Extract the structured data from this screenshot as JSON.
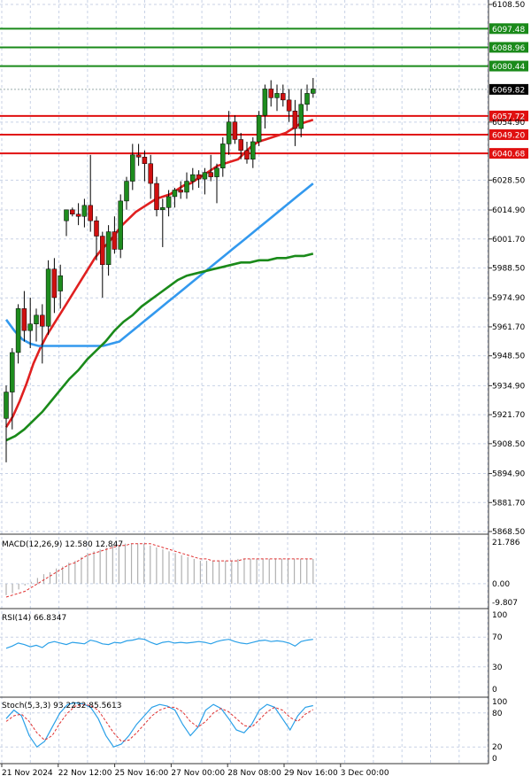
{
  "chart_data": {
    "type": "candlestick",
    "price_axis": {
      "ylim": [
        5868.5,
        6108.5
      ],
      "tick_labels": [
        "6108.50",
        "6054.90",
        "6028.50",
        "6014.90",
        "6001.70",
        "5988.50",
        "5974.90",
        "5961.70",
        "5948.50",
        "5934.90",
        "5921.70",
        "5908.50",
        "5894.90",
        "5881.70",
        "5868.50"
      ],
      "tick_values": [
        6108.5,
        6054.9,
        6028.5,
        6014.9,
        6001.7,
        5988.5,
        5974.9,
        5961.7,
        5948.5,
        5934.9,
        5921.7,
        5908.5,
        5894.9,
        5881.7,
        5868.5
      ]
    },
    "x_axis": {
      "tick_labels": [
        "21 Nov 2024",
        "22 Nov 12:00",
        "25 Nov 16:00",
        "27 Nov 00:00",
        "28 Nov 08:00",
        "29 Nov 16:00",
        "3 Dec 00:00"
      ],
      "tick_index": [
        0,
        10,
        20,
        30,
        40,
        50,
        60
      ]
    },
    "levels": [
      {
        "label": "6097.48",
        "value": 6097.48,
        "color": "#1a8a1a"
      },
      {
        "label": "6088.96",
        "value": 6088.96,
        "color": "#1a8a1a"
      },
      {
        "label": "6080.44",
        "value": 6080.44,
        "color": "#1a8a1a"
      },
      {
        "label": "6057.72",
        "value": 6057.72,
        "color": "#e01010"
      },
      {
        "label": "6049.20",
        "value": 6049.2,
        "color": "#e01010"
      },
      {
        "label": "6040.68",
        "value": 6040.68,
        "color": "#e01010"
      }
    ],
    "current_price": {
      "label": "6069.82",
      "value": 6069.82
    },
    "candles": [
      [
        5920,
        5935,
        5900,
        5932
      ],
      [
        5932,
        5952,
        5915,
        5950
      ],
      [
        5950,
        5972,
        5945,
        5970
      ],
      [
        5970,
        5978,
        5955,
        5960
      ],
      [
        5960,
        5975,
        5952,
        5963
      ],
      [
        5963,
        5970,
        5955,
        5967
      ],
      [
        5967,
        5972,
        5945,
        5962
      ],
      [
        5962,
        5992,
        5958,
        5988
      ],
      [
        5988,
        5993,
        5968,
        5975
      ],
      [
        5978,
        5990,
        5970,
        5985
      ],
      [
        6010,
        6015,
        6003,
        6015
      ],
      [
        6015,
        6016,
        6012,
        6013
      ],
      [
        6013,
        6018,
        6008,
        6012
      ],
      [
        6012,
        6020,
        6007,
        6017
      ],
      [
        6017,
        6040,
        6005,
        6010
      ],
      [
        6010,
        6012,
        5992,
        6003
      ],
      [
        6003,
        6005,
        5975,
        5990
      ],
      [
        5990,
        6008,
        5985,
        6005
      ],
      [
        6005,
        6012,
        5995,
        5997
      ],
      [
        5997,
        6022,
        5993,
        6019
      ],
      [
        6019,
        6030,
        6015,
        6028
      ],
      [
        6028,
        6045,
        6024,
        6040
      ],
      [
        6040,
        6045,
        6035,
        6039
      ],
      [
        6039,
        6042,
        6028,
        6036
      ],
      [
        6036,
        6040,
        6020,
        6027
      ],
      [
        6027,
        6030,
        6012,
        6015
      ],
      [
        6015,
        6020,
        5998,
        6016
      ],
      [
        6016,
        6024,
        6012,
        6021
      ],
      [
        6021,
        6025,
        6016,
        6024
      ],
      [
        6024,
        6028,
        6020,
        6023
      ],
      [
        6023,
        6032,
        6020,
        6028
      ],
      [
        6028,
        6034,
        6024,
        6031
      ],
      [
        6031,
        6033,
        6025,
        6029
      ],
      [
        6029,
        6034,
        6022,
        6032
      ],
      [
        6032,
        6040,
        6028,
        6030
      ],
      [
        6030,
        6036,
        6018,
        6034
      ],
      [
        6034,
        6048,
        6030,
        6045
      ],
      [
        6045,
        6060,
        6040,
        6055
      ],
      [
        6055,
        6058,
        6045,
        6047
      ],
      [
        6047,
        6050,
        6038,
        6042
      ],
      [
        6042,
        6046,
        6036,
        6038
      ],
      [
        6038,
        6048,
        6034,
        6046
      ],
      [
        6046,
        6060,
        6044,
        6058
      ],
      [
        6058,
        6072,
        6052,
        6070
      ],
      [
        6070,
        6074,
        6062,
        6066
      ],
      [
        6066,
        6072,
        6060,
        6068
      ],
      [
        6068,
        6072,
        6062,
        6065
      ],
      [
        6065,
        6070,
        6055,
        6060
      ],
      [
        6060,
        6065,
        6044,
        6052
      ],
      [
        6052,
        6070,
        6048,
        6063
      ],
      [
        6063,
        6072,
        6060,
        6068
      ],
      [
        6068,
        6075,
        6066,
        6070
      ]
    ],
    "moving_averages": [
      {
        "color": "#e02020",
        "values": [
          5916,
          5921,
          5928,
          5936,
          5945,
          5952,
          5958,
          5963,
          5968,
          5973,
          5978,
          5983,
          5988,
          5993,
          5997,
          6000,
          6004,
          6008,
          6011,
          6014,
          6016,
          6018,
          6020,
          6021,
          6022,
          6024,
          6026,
          6027,
          6029,
          6031,
          6033,
          6035,
          6036,
          6037,
          6038,
          6041,
          6044,
          6046,
          6047,
          6048,
          6049,
          6050,
          6052,
          6054,
          6055,
          6056
        ]
      },
      {
        "color": "#3399ee",
        "values": [
          5965,
          5960,
          5956,
          5954,
          5953,
          5953,
          5953,
          5953,
          5953,
          5953,
          5953,
          5953,
          5953,
          5954,
          5955,
          5958,
          5961,
          5964,
          5967,
          5970,
          5973,
          5976,
          5979,
          5982,
          5985,
          5988,
          5991,
          5994,
          5997,
          6000,
          6003,
          6006,
          6009,
          6012,
          6015,
          6018,
          6021,
          6024,
          6027
        ]
      },
      {
        "color": "#1a8a1a",
        "values": [
          5910,
          5912,
          5915,
          5919,
          5923,
          5928,
          5933,
          5938,
          5942,
          5947,
          5951,
          5955,
          5960,
          5964,
          5967,
          5971,
          5974,
          5977,
          5980,
          5983,
          5985,
          5986,
          5987,
          5988,
          5989,
          5990,
          5991,
          5991,
          5992,
          5992,
          5993,
          5993,
          5994,
          5994,
          5995
        ]
      }
    ],
    "macd": {
      "label": "MACD(12,26,9) 12.580 12.847",
      "tick_labels": [
        "21.786",
        "0.00",
        "-9.807"
      ],
      "ylim": [
        -9.807,
        21.786
      ],
      "histogram": [
        -6,
        -5,
        -3,
        -1,
        1,
        3,
        5,
        6,
        8,
        9,
        11,
        12,
        14,
        16,
        17,
        18,
        19,
        20,
        20,
        21,
        21,
        21,
        21,
        20,
        19,
        18,
        17,
        16,
        15,
        14,
        13,
        12,
        12,
        12,
        12,
        12,
        12,
        13,
        13,
        13,
        13,
        13,
        13,
        13,
        13,
        13,
        13,
        13,
        13,
        13
      ],
      "signal": [
        -7,
        -6,
        -5,
        -4,
        -2,
        0,
        2,
        4,
        6,
        8,
        10,
        11,
        13,
        15,
        16,
        17,
        18,
        19,
        20,
        20,
        21,
        21,
        21,
        21,
        20,
        19,
        18,
        17,
        16,
        15,
        14,
        13,
        13,
        12,
        12,
        12,
        12,
        12,
        13,
        13,
        13,
        13,
        13,
        13,
        13,
        13,
        13,
        13,
        13,
        13
      ]
    },
    "rsi": {
      "label": "RSI(14) 66.8347",
      "tick_labels": [
        "100",
        "70",
        "30",
        "0"
      ],
      "tick_values": [
        100,
        70,
        30,
        0
      ],
      "values": [
        55,
        58,
        62,
        60,
        57,
        59,
        56,
        62,
        64,
        62,
        60,
        63,
        62,
        61,
        66,
        64,
        61,
        60,
        63,
        62,
        65,
        66,
        68,
        67,
        63,
        60,
        63,
        64,
        62,
        63,
        62,
        63,
        64,
        63,
        61,
        64,
        66,
        67,
        64,
        62,
        61,
        63,
        65,
        66,
        64,
        65,
        64,
        62,
        58,
        64,
        66,
        67
      ]
    },
    "stoch": {
      "label": "Stoch(5,3,3) 93.2232 85.5613",
      "tick_labels": [
        "100",
        "80",
        "20",
        "0"
      ],
      "tick_values": [
        100,
        80,
        20,
        0
      ],
      "k": [
        70,
        85,
        75,
        40,
        20,
        30,
        55,
        80,
        95,
        98,
        96,
        90,
        70,
        40,
        20,
        25,
        40,
        60,
        75,
        90,
        95,
        92,
        85,
        60,
        40,
        55,
        85,
        95,
        88,
        70,
        50,
        45,
        60,
        85,
        95,
        90,
        70,
        50,
        75,
        90,
        93
      ],
      "d": [
        65,
        75,
        78,
        65,
        45,
        32,
        40,
        62,
        80,
        92,
        95,
        93,
        85,
        65,
        45,
        30,
        32,
        45,
        60,
        75,
        85,
        90,
        90,
        82,
        65,
        55,
        65,
        80,
        88,
        82,
        70,
        58,
        55,
        68,
        82,
        90,
        85,
        72,
        65,
        78,
        86
      ]
    }
  }
}
